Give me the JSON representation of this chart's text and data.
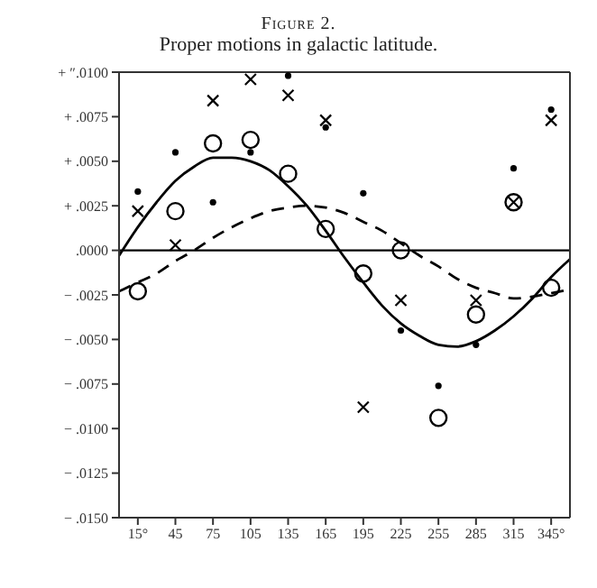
{
  "chart_data": {
    "type": "scatter",
    "title": "Figure 2.",
    "subtitle": "Proper motions in galactic latitude.",
    "xlim": [
      0,
      360
    ],
    "xticks": [
      {
        "value": 15,
        "label": "15°"
      },
      45,
      75,
      105,
      135,
      165,
      195,
      225,
      255,
      285,
      315,
      {
        "value": 345,
        "label": "345°"
      }
    ],
    "ylim": [
      -0.015,
      0.01
    ],
    "yticks": [
      {
        "value": 0.01,
        "label": "+ ″.0100"
      },
      {
        "value": 0.0075,
        "label": "+ .0075"
      },
      {
        "value": 0.005,
        "label": "+ .0050"
      },
      {
        "value": 0.0025,
        "label": "+ .0025"
      },
      {
        "value": 0,
        "label": ".0000"
      },
      {
        "value": -0.0025,
        "label": "− .0025"
      },
      {
        "value": -0.005,
        "label": "− .0050"
      },
      {
        "value": -0.0075,
        "label": "− .0075"
      },
      {
        "value": -0.01,
        "label": "− .0100"
      },
      {
        "value": -0.0125,
        "label": "− .0125"
      },
      {
        "value": -0.015,
        "label": "− .0150"
      }
    ],
    "ref_lines": [
      {
        "axis": "y",
        "value": 0,
        "color": "#000000"
      }
    ],
    "x": [
      15,
      45,
      75,
      105,
      135,
      165,
      195,
      225,
      255,
      285,
      315,
      345
    ],
    "series": [
      {
        "marker": "circle",
        "color": "#000000",
        "values": [
          0.0033,
          0.0055,
          0.0027,
          0.0055,
          0.0098,
          0.0069,
          0.0032,
          -0.0045,
          -0.0076,
          -0.0053,
          0.0046,
          0.0079
        ]
      },
      {
        "marker": "cross",
        "color": "#000000",
        "values": [
          0.0022,
          0.0003,
          0.0084,
          0.0096,
          0.0087,
          0.0073,
          -0.0088,
          -0.0028,
          null,
          -0.0028,
          0.0027,
          0.0073
        ]
      },
      {
        "marker": "circle",
        "color": "#000000",
        "values": [
          -0.0023,
          0.0022,
          0.006,
          0.0062,
          0.0043,
          0.0012,
          -0.0013,
          0.0,
          -0.0094,
          -0.0036,
          0.0027,
          -0.0021
        ]
      },
      {
        "type": "line",
        "line_style": "solid",
        "color": "#000000",
        "x": [
          0,
          15,
          30,
          45,
          60,
          75,
          90,
          105,
          120,
          135,
          150,
          165,
          180,
          195,
          210,
          225,
          240,
          255,
          270,
          285,
          300,
          315,
          330,
          345,
          360
        ],
        "values": [
          -0.0003,
          0.0013,
          0.0027,
          0.0039,
          0.0047,
          0.0052,
          0.0052,
          0.005,
          0.0045,
          0.0036,
          0.0025,
          0.0011,
          -0.0004,
          -0.0018,
          -0.0031,
          -0.0041,
          -0.0048,
          -0.0053,
          -0.0054,
          -0.0051,
          -0.0045,
          -0.0037,
          -0.0027,
          -0.0015,
          -0.0005
        ]
      },
      {
        "type": "line",
        "line_style": "dashed",
        "color": "#000000",
        "x": [
          0,
          15,
          30,
          45,
          60,
          75,
          90,
          105,
          120,
          135,
          150,
          165,
          180,
          195,
          210,
          225,
          240,
          255,
          270,
          285,
          300,
          315,
          330,
          345,
          360
        ],
        "values": [
          -0.0023,
          -0.0018,
          -0.0013,
          -0.0006,
          0.0,
          0.0007,
          0.0013,
          0.0018,
          0.0022,
          0.0024,
          0.0025,
          0.0024,
          0.0021,
          0.0016,
          0.0011,
          0.0004,
          -0.0003,
          -0.0009,
          -0.0016,
          -0.0021,
          -0.0024,
          -0.0027,
          -0.0026,
          -0.0024,
          -0.0022
        ]
      }
    ]
  }
}
